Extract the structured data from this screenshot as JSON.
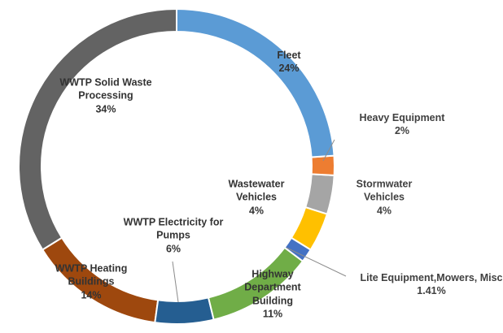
{
  "chart_data": {
    "type": "donut",
    "categories": [
      "Fleet",
      "Heavy Equipment",
      "Wastewater Vehicles",
      "Stormwater Vehicles",
      "Lite Equipment,Mowers, Misc",
      "Highway Department Building",
      "WWTP Electricity for Pumps",
      "WWTP Heating Buildings",
      "WWTP Solid Waste Processing"
    ],
    "values": [
      24,
      2,
      4,
      4,
      1.41,
      11,
      6,
      14,
      34
    ],
    "value_labels": [
      "24%",
      "2%",
      "4%",
      "4%",
      "1.41%",
      "11%",
      "6%",
      "14%",
      "34%"
    ],
    "colors": [
      "#5b9bd5",
      "#ed7d31",
      "#a5a5a5",
      "#ffc000",
      "#4472c4",
      "#70ad47",
      "#255e91",
      "#9e480e",
      "#636363"
    ]
  }
}
